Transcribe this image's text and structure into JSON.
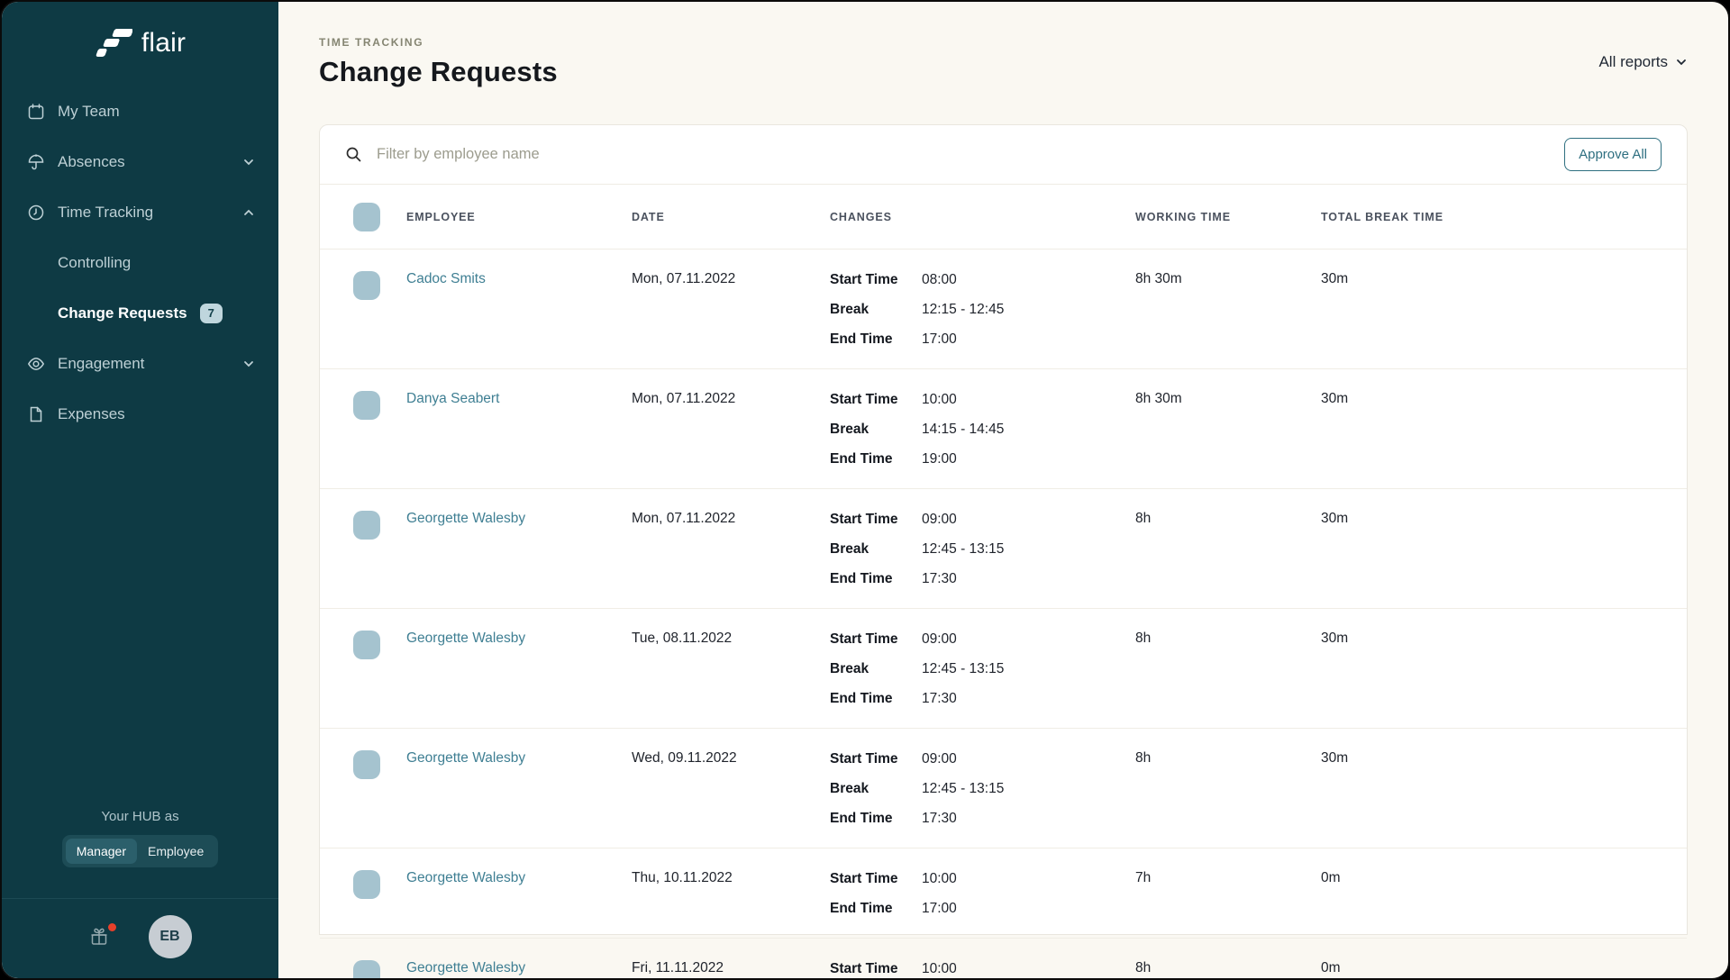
{
  "sidebar": {
    "logo_text": "flair",
    "items": [
      {
        "label": "My Team",
        "icon": "calendar-icon"
      },
      {
        "label": "Absences",
        "icon": "umbrella-icon",
        "chevron": "down"
      },
      {
        "label": "Time Tracking",
        "icon": "clock-icon",
        "chevron": "up"
      },
      {
        "label": "Controlling",
        "type": "sub"
      },
      {
        "label": "Change Requests",
        "type": "sub",
        "badge": "7",
        "active": true
      },
      {
        "label": "Engagement",
        "icon": "eye-icon",
        "chevron": "down"
      },
      {
        "label": "Expenses",
        "icon": "file-icon"
      }
    ],
    "hub_label": "Your HUB as",
    "role_toggle": {
      "options": [
        "Manager",
        "Employee"
      ],
      "active": "Manager"
    },
    "avatar_initials": "EB"
  },
  "header": {
    "eyebrow": "TIME TRACKING",
    "title": "Change Requests",
    "reports_dropdown": "All reports"
  },
  "toolbar": {
    "search_placeholder": "Filter by employee name",
    "approve_all_label": "Approve All"
  },
  "table": {
    "columns": [
      "EMPLOYEE",
      "DATE",
      "CHANGES",
      "WORKING TIME",
      "TOTAL BREAK TIME"
    ],
    "rows": [
      {
        "employee": "Cadoc Smits",
        "date": "Mon, 07.11.2022",
        "changes": [
          {
            "label": "Start Time",
            "value": "08:00"
          },
          {
            "label": "Break",
            "value": "12:15 - 12:45"
          },
          {
            "label": "End Time",
            "value": "17:00"
          }
        ],
        "working_time": "8h 30m",
        "break_time": "30m"
      },
      {
        "employee": "Danya Seabert",
        "date": "Mon, 07.11.2022",
        "changes": [
          {
            "label": "Start Time",
            "value": "10:00"
          },
          {
            "label": "Break",
            "value": "14:15 - 14:45"
          },
          {
            "label": "End Time",
            "value": "19:00"
          }
        ],
        "working_time": "8h 30m",
        "break_time": "30m"
      },
      {
        "employee": "Georgette Walesby",
        "date": "Mon, 07.11.2022",
        "changes": [
          {
            "label": "Start Time",
            "value": "09:00"
          },
          {
            "label": "Break",
            "value": "12:45 - 13:15"
          },
          {
            "label": "End Time",
            "value": "17:30"
          }
        ],
        "working_time": "8h",
        "break_time": "30m"
      },
      {
        "employee": "Georgette Walesby",
        "date": "Tue, 08.11.2022",
        "changes": [
          {
            "label": "Start Time",
            "value": "09:00"
          },
          {
            "label": "Break",
            "value": "12:45 - 13:15"
          },
          {
            "label": "End Time",
            "value": "17:30"
          }
        ],
        "working_time": "8h",
        "break_time": "30m"
      },
      {
        "employee": "Georgette Walesby",
        "date": "Wed, 09.11.2022",
        "changes": [
          {
            "label": "Start Time",
            "value": "09:00"
          },
          {
            "label": "Break",
            "value": "12:45 - 13:15"
          },
          {
            "label": "End Time",
            "value": "17:30"
          }
        ],
        "working_time": "8h",
        "break_time": "30m"
      },
      {
        "employee": "Georgette Walesby",
        "date": "Thu, 10.11.2022",
        "changes": [
          {
            "label": "Start Time",
            "value": "10:00"
          },
          {
            "label": "End Time",
            "value": "17:00"
          }
        ],
        "working_time": "7h",
        "break_time": "0m"
      },
      {
        "employee": "Georgette Walesby",
        "date": "Fri, 11.11.2022",
        "changes": [
          {
            "label": "Start Time",
            "value": "10:00"
          }
        ],
        "working_time": "8h",
        "break_time": "0m"
      }
    ]
  },
  "colors": {
    "sidebar_bg": "#0E3A44",
    "accent_teal": "#2E6F80",
    "link_teal": "#3F7F93",
    "checkbox_fill": "#A5C3CF",
    "badge_bg": "#BFD6DD",
    "page_bg": "#FAF8F2",
    "notification_red": "#E8402A"
  }
}
